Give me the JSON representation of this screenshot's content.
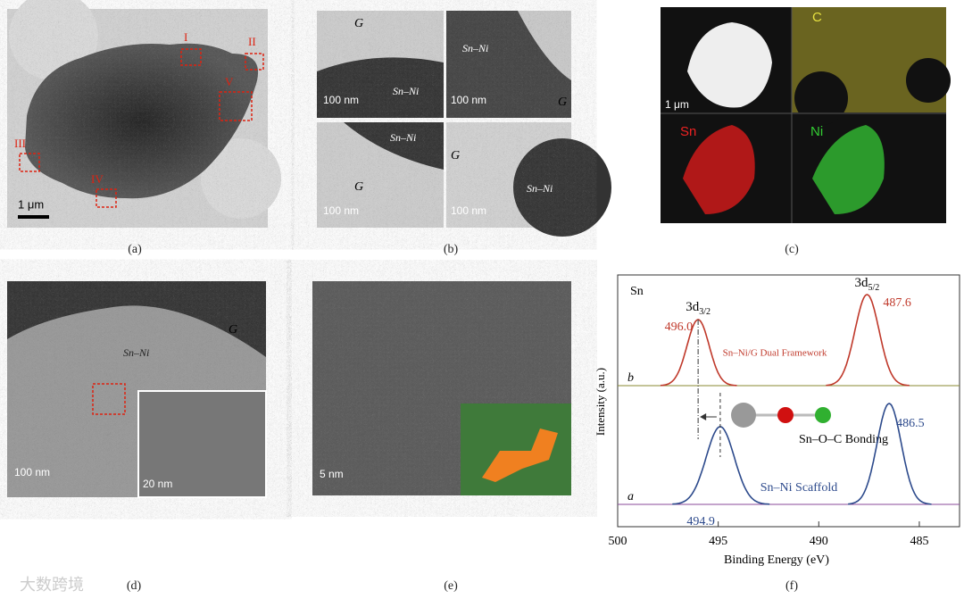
{
  "panels": [
    {
      "label": "(a)",
      "annotations": [
        "I",
        "II",
        "III",
        "IV",
        "V"
      ],
      "scale_bar": "1 μm"
    },
    {
      "label": "(b)",
      "subpanels": [
        {
          "material": "Sn–Ni",
          "graphene": "G",
          "scale_bar": "100 nm"
        },
        {
          "material": "Sn–Ni",
          "graphene": "G",
          "scale_bar": "100 nm"
        },
        {
          "material": "Sn–Ni",
          "graphene": "G",
          "scale_bar": "100 nm"
        },
        {
          "material": "Sn–Ni",
          "graphene": "G",
          "scale_bar": "100 nm"
        }
      ]
    },
    {
      "label": "(c)",
      "scale_bar": "1 μm",
      "maps": [
        "C",
        "Sn",
        "Ni"
      ]
    },
    {
      "label": "(d)",
      "material": "Sn–Ni",
      "graphene": "G",
      "scale_bar": "100 nm",
      "inset_scale_bar": "20 nm"
    },
    {
      "label": "(e)",
      "scale_bar": "5 nm"
    },
    {
      "label": "(f)"
    }
  ],
  "xps": {
    "element": "Sn",
    "x_label": "Binding Energy (eV)",
    "y_label": "Intensity (a.u.)",
    "xlim": [
      500,
      483
    ],
    "xticks": [
      500,
      495,
      490,
      485
    ],
    "orbitals": [
      {
        "base": "3d",
        "sub": "3/2"
      },
      {
        "base": "3d",
        "sub": "5/2"
      }
    ],
    "spectra": [
      {
        "name": "b",
        "label": "Sn–Ni/G Dual Framework",
        "color": "#c0392b",
        "peaks": [
          496.0,
          487.6
        ],
        "peak_labels": [
          "496.0",
          "487.6"
        ]
      },
      {
        "name": "a",
        "label": "Sn–Ni Scaffold",
        "color": "#2d4a8c",
        "peaks": [
          494.9,
          486.5
        ],
        "peak_labels": [
          "494.9",
          "486.5"
        ]
      }
    ],
    "bonding": "Sn–O–C Bonding"
  },
  "watermark": "大数跨境"
}
